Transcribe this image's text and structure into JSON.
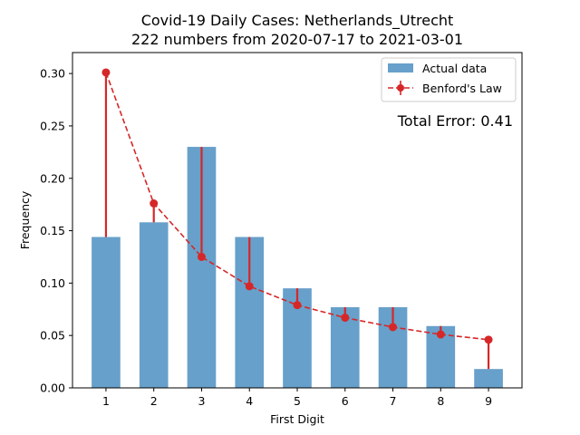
{
  "chart_data": {
    "type": "bar",
    "title_line1": "Covid-19 Daily Cases: Netherlands_Utrecht",
    "title_line2": "222 numbers from 2020-07-17 to 2021-03-01",
    "xlabel": "First Digit",
    "ylabel": "Frequency",
    "categories": [
      "1",
      "2",
      "3",
      "4",
      "5",
      "6",
      "7",
      "8",
      "9"
    ],
    "x": [
      1,
      2,
      3,
      4,
      5,
      6,
      7,
      8,
      9
    ],
    "series": [
      {
        "name": "Actual data",
        "kind": "bar",
        "values": [
          0.144,
          0.158,
          0.23,
          0.144,
          0.095,
          0.077,
          0.077,
          0.059,
          0.018
        ]
      },
      {
        "name": "Benford's Law",
        "kind": "line-dashed-markers",
        "values": [
          0.301,
          0.176,
          0.125,
          0.097,
          0.079,
          0.067,
          0.058,
          0.051,
          0.046
        ]
      }
    ],
    "ylim": [
      0,
      0.32
    ],
    "xlim": [
      0.3,
      9.7
    ],
    "yticks": [
      "0.00",
      "0.05",
      "0.10",
      "0.15",
      "0.20",
      "0.25",
      "0.30"
    ],
    "ytick_values": [
      0,
      0.05,
      0.1,
      0.15,
      0.2,
      0.25,
      0.3
    ],
    "annotation": "Total Error: 0.41",
    "legend_position": "top-right",
    "grid": false,
    "colors": {
      "bar": "#67a0ca",
      "benford": "#d62728",
      "error_text": "#d62728"
    }
  }
}
